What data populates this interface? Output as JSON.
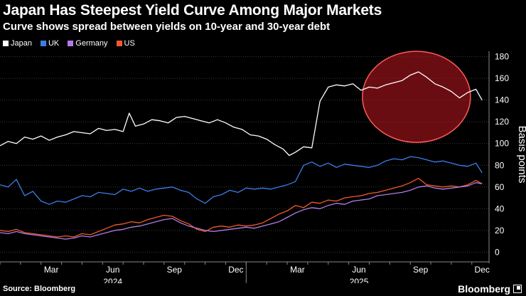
{
  "header": {
    "title": "Japan Has Steepest Yield Curve Among Major Markets",
    "subtitle": "Curve shows spread between yields on 10-year and 30-year debt"
  },
  "footer": {
    "source": "Source: Bloomberg",
    "brand": "Bloomberg"
  },
  "chart_data": {
    "type": "line",
    "title": "Japan Has Steepest Yield Curve Among Major Markets",
    "subtitle": "Curve shows spread between yields on 10-year and 30-year debt",
    "ylabel": "Basis points",
    "ylim": [
      -5,
      185
    ],
    "yticks": [
      0,
      20,
      40,
      60,
      80,
      100,
      120,
      140,
      160,
      180
    ],
    "xlim": [
      0,
      23.7
    ],
    "xticks": [
      {
        "x": 2,
        "label": "Mar"
      },
      {
        "x": 5,
        "label": "Jun"
      },
      {
        "x": 8,
        "label": "Sep"
      },
      {
        "x": 11,
        "label": "Dec"
      },
      {
        "x": 14,
        "label": "Mar"
      },
      {
        "x": 17,
        "label": "Jun"
      },
      {
        "x": 20,
        "label": "Sep"
      },
      {
        "x": 23,
        "label": "Dec"
      }
    ],
    "year_labels": [
      {
        "x": 5,
        "label": "2024"
      },
      {
        "x": 17,
        "label": "2025"
      }
    ],
    "x_unit": "months since Jan 2024",
    "series": [
      {
        "name": "Japan",
        "color": "#ffffff",
        "x": [
          0,
          0.4,
          0.8,
          1.2,
          1.6,
          2,
          2.4,
          2.8,
          3.2,
          3.6,
          4,
          4.4,
          4.8,
          5.2,
          5.6,
          6,
          6.3,
          6.6,
          7,
          7.4,
          7.8,
          8.2,
          8.6,
          9,
          9.4,
          9.8,
          10.2,
          10.6,
          11,
          11.4,
          11.8,
          12.2,
          12.6,
          13,
          13.4,
          13.8,
          14.1,
          14.4,
          14.8,
          15.2,
          15.6,
          16,
          16.4,
          16.8,
          17.2,
          17.6,
          18,
          18.4,
          18.8,
          19.2,
          19.6,
          20,
          20.4,
          20.8,
          21.2,
          21.6,
          22,
          22.4,
          22.8,
          23.2,
          23.5
        ],
        "y": [
          98,
          102,
          100,
          106,
          104,
          107,
          103,
          106,
          108,
          111,
          110,
          109,
          114,
          112,
          113,
          111,
          128,
          116,
          118,
          122,
          121,
          119,
          124,
          125,
          123,
          121,
          119,
          122,
          119,
          115,
          113,
          108,
          107,
          104,
          99,
          95,
          89,
          92,
          97,
          96,
          139,
          152,
          154,
          153,
          155,
          149,
          152,
          151,
          154,
          156,
          158,
          163,
          166,
          161,
          155,
          152,
          148,
          142,
          147,
          150,
          140
        ]
      },
      {
        "name": "UK",
        "color": "#3b7ee8",
        "x": [
          0,
          0.4,
          0.8,
          1.2,
          1.6,
          2,
          2.4,
          2.8,
          3.2,
          3.6,
          4,
          4.4,
          4.8,
          5.2,
          5.6,
          6,
          6.4,
          6.8,
          7.2,
          7.6,
          8,
          8.4,
          8.8,
          9.2,
          9.6,
          10,
          10.4,
          10.8,
          11.2,
          11.6,
          12,
          12.4,
          12.8,
          13.2,
          13.6,
          14,
          14.4,
          14.8,
          15.2,
          15.6,
          16,
          16.4,
          16.8,
          17.2,
          17.6,
          18,
          18.4,
          18.8,
          19.2,
          19.6,
          20,
          20.4,
          20.8,
          21.2,
          21.6,
          22,
          22.4,
          22.8,
          23.2,
          23.5
        ],
        "y": [
          62,
          60,
          67,
          52,
          56,
          47,
          44,
          47,
          46,
          49,
          52,
          51,
          55,
          54,
          53,
          58,
          56,
          59,
          56,
          58,
          59,
          60,
          57,
          55,
          49,
          45,
          51,
          53,
          57,
          55,
          59,
          58,
          59,
          58,
          60,
          62,
          65,
          80,
          83,
          79,
          82,
          78,
          81,
          80,
          79,
          78,
          80,
          84,
          86,
          85,
          88,
          87,
          85,
          83,
          84,
          82,
          80,
          79,
          82,
          73
        ]
      },
      {
        "name": "Germany",
        "color": "#b27ce8",
        "x": [
          0,
          0.4,
          0.8,
          1.2,
          1.6,
          2,
          2.4,
          2.8,
          3.2,
          3.6,
          4,
          4.4,
          4.8,
          5.2,
          5.6,
          6,
          6.4,
          6.8,
          7.2,
          7.6,
          8,
          8.4,
          8.8,
          9.2,
          9.6,
          10,
          10.4,
          10.8,
          11.2,
          11.6,
          12,
          12.4,
          12.8,
          13.2,
          13.6,
          14,
          14.4,
          14.8,
          15.2,
          15.6,
          16,
          16.4,
          16.8,
          17.2,
          17.6,
          18,
          18.4,
          18.8,
          19.2,
          19.6,
          20,
          20.4,
          20.8,
          21.2,
          21.6,
          22,
          22.4,
          22.8,
          23.2,
          23.5
        ],
        "y": [
          18,
          17,
          19,
          17,
          16,
          15,
          14,
          13,
          12,
          13,
          15,
          14,
          16,
          18,
          20,
          21,
          23,
          24,
          26,
          28,
          30,
          31,
          27,
          24,
          22,
          20,
          19,
          20,
          21,
          22,
          23,
          22,
          24,
          26,
          28,
          32,
          36,
          39,
          41,
          40,
          43,
          45,
          44,
          47,
          48,
          49,
          52,
          53,
          54,
          55,
          57,
          60,
          61,
          59,
          58,
          59,
          60,
          61,
          64,
          63
        ]
      },
      {
        "name": "US",
        "color": "#ef5b2a",
        "x": [
          0,
          0.4,
          0.8,
          1.2,
          1.6,
          2,
          2.4,
          2.8,
          3.2,
          3.6,
          4,
          4.4,
          4.8,
          5.2,
          5.6,
          6,
          6.4,
          6.8,
          7.2,
          7.6,
          8,
          8.4,
          8.8,
          9.2,
          9.6,
          10,
          10.4,
          10.8,
          11.2,
          11.6,
          12,
          12.4,
          12.8,
          13.2,
          13.6,
          14,
          14.4,
          14.8,
          15.2,
          15.6,
          16,
          16.4,
          16.8,
          17.2,
          17.6,
          18,
          18.4,
          18.8,
          19.2,
          19.6,
          20,
          20.4,
          20.8,
          21.2,
          21.6,
          22,
          22.4,
          22.8,
          23.2,
          23.5
        ],
        "y": [
          20,
          19,
          21,
          18,
          17,
          16,
          15,
          14,
          15,
          14,
          17,
          16,
          19,
          22,
          25,
          26,
          28,
          27,
          30,
          32,
          34,
          33,
          29,
          26,
          21,
          19,
          23,
          24,
          23,
          25,
          24,
          25,
          27,
          31,
          35,
          38,
          43,
          41,
          46,
          45,
          48,
          47,
          50,
          51,
          52,
          54,
          55,
          57,
          59,
          61,
          64,
          68,
          62,
          61,
          60,
          61,
          60,
          62,
          66,
          63
        ]
      }
    ],
    "legend": [
      "Japan",
      "UK",
      "Germany",
      "US"
    ],
    "legend_placement": "top-left",
    "annotation": {
      "type": "highlight-circle",
      "center_x": 20.3,
      "center_y": 143,
      "color": "#b0151e"
    }
  }
}
